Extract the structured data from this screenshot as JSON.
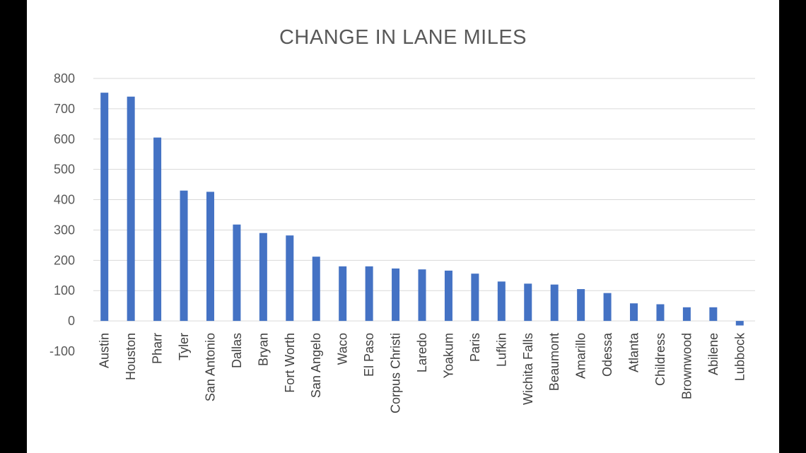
{
  "chart_data": {
    "type": "bar",
    "title": "CHANGE IN LANE MILES",
    "xlabel": "",
    "ylabel": "",
    "ylim": [
      -100,
      800
    ],
    "yticks": [
      -100,
      0,
      100,
      200,
      300,
      400,
      500,
      600,
      700,
      800
    ],
    "grid": true,
    "legend": "none",
    "bar_color": "#4472C4",
    "categories": [
      "Austin",
      "Houston",
      "Pharr",
      "Tyler",
      "San Antonio",
      "Dallas",
      "Bryan",
      "Fort Worth",
      "San Angelo",
      "Waco",
      "El Paso",
      "Corpus Christi",
      "Laredo",
      "Yoakum",
      "Paris",
      "Lufkin",
      "Wichita Falls",
      "Beaumont",
      "Amarillo",
      "Odessa",
      "Atlanta",
      "Childress",
      "Brownwood",
      "Abilene",
      "Lubbock"
    ],
    "values": [
      753,
      740,
      605,
      430,
      426,
      318,
      290,
      282,
      212,
      180,
      180,
      173,
      170,
      166,
      156,
      130,
      123,
      120,
      105,
      92,
      58,
      55,
      45,
      45,
      -15
    ]
  }
}
